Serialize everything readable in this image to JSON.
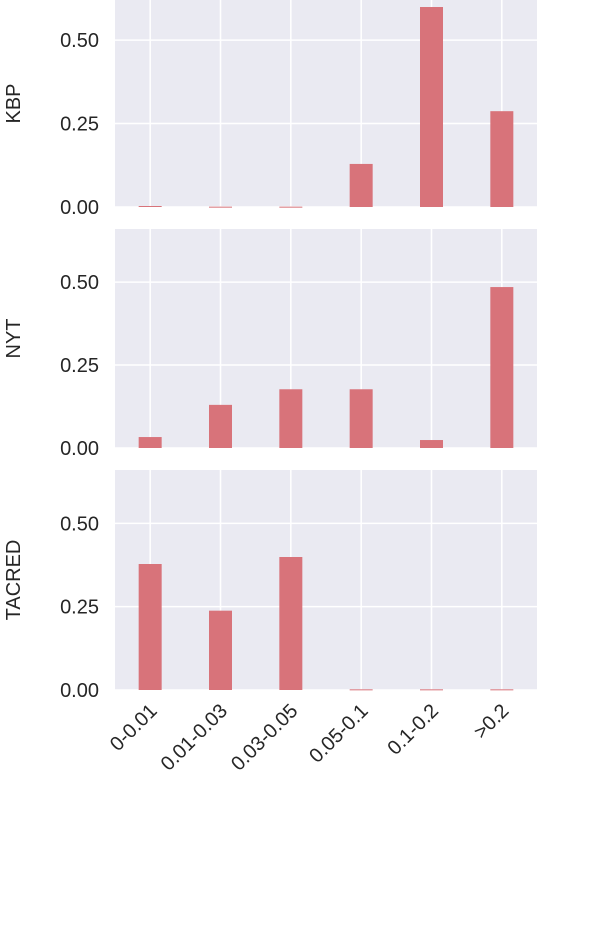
{
  "chart_data": [
    {
      "type": "bar",
      "ylabel": "KBP",
      "color": "#d8737a",
      "values": [
        0.003,
        0.001,
        0.001,
        0.129,
        0.599,
        0.287
      ],
      "ylim": [
        0,
        0.62
      ],
      "yticks": [
        {
          "value": 0,
          "label": "0.00"
        },
        {
          "value": 0.25,
          "label": "0.25"
        },
        {
          "value": 0.5,
          "label": "0.50"
        }
      ],
      "grid": true
    },
    {
      "type": "bar",
      "ylabel": "NYT",
      "color": "#d8737a",
      "values": [
        0.033,
        0.13,
        0.177,
        0.177,
        0.024,
        0.485
      ],
      "ylim": [
        0,
        0.66
      ],
      "yticks": [
        {
          "value": 0,
          "label": "0.00"
        },
        {
          "value": 0.25,
          "label": "0.25"
        },
        {
          "value": 0.5,
          "label": "0.50"
        }
      ],
      "grid": true
    },
    {
      "type": "bar",
      "ylabel": "TACRED",
      "color": "#d8737a",
      "categories": [
        "0-0.01",
        "0.01-0.03",
        "0.03-0.05",
        "0.05-0.1",
        "0.1-0.2",
        ">0.2"
      ],
      "values": [
        0.378,
        0.238,
        0.399,
        0.002,
        0.002,
        0.002
      ],
      "ylim": [
        0,
        0.66
      ],
      "yticks": [
        {
          "value": 0,
          "label": "0.00"
        },
        {
          "value": 0.25,
          "label": "0.25"
        },
        {
          "value": 0.5,
          "label": "0.50"
        }
      ],
      "grid": true
    }
  ]
}
